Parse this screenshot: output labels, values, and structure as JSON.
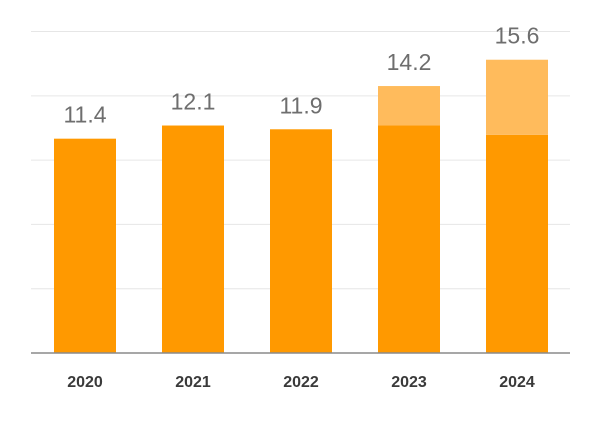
{
  "chart_data": {
    "type": "bar",
    "stacked": true,
    "categories": [
      "2020",
      "2021",
      "2022",
      "2023",
      "2024"
    ],
    "series": [
      {
        "values": [
          11.4,
          12.1,
          11.9,
          12.1,
          11.6
        ]
      },
      {
        "values": [
          0,
          0,
          0,
          2.1,
          4.0
        ]
      }
    ],
    "totals": [
      11.4,
      12.1,
      11.9,
      14.2,
      15.6
    ],
    "total_labels": [
      "11.4",
      "12.1",
      "11.9",
      "14.2",
      "15.6"
    ],
    "title": "",
    "xlabel": "",
    "ylabel": "",
    "ylim": [
      0,
      18
    ],
    "grid": true,
    "legend": "none"
  },
  "colors": {
    "primary": "#ff9900",
    "secondary": "#ffbb5c",
    "grid": "#e6e6e6",
    "baseline": "#8a8a8a"
  }
}
